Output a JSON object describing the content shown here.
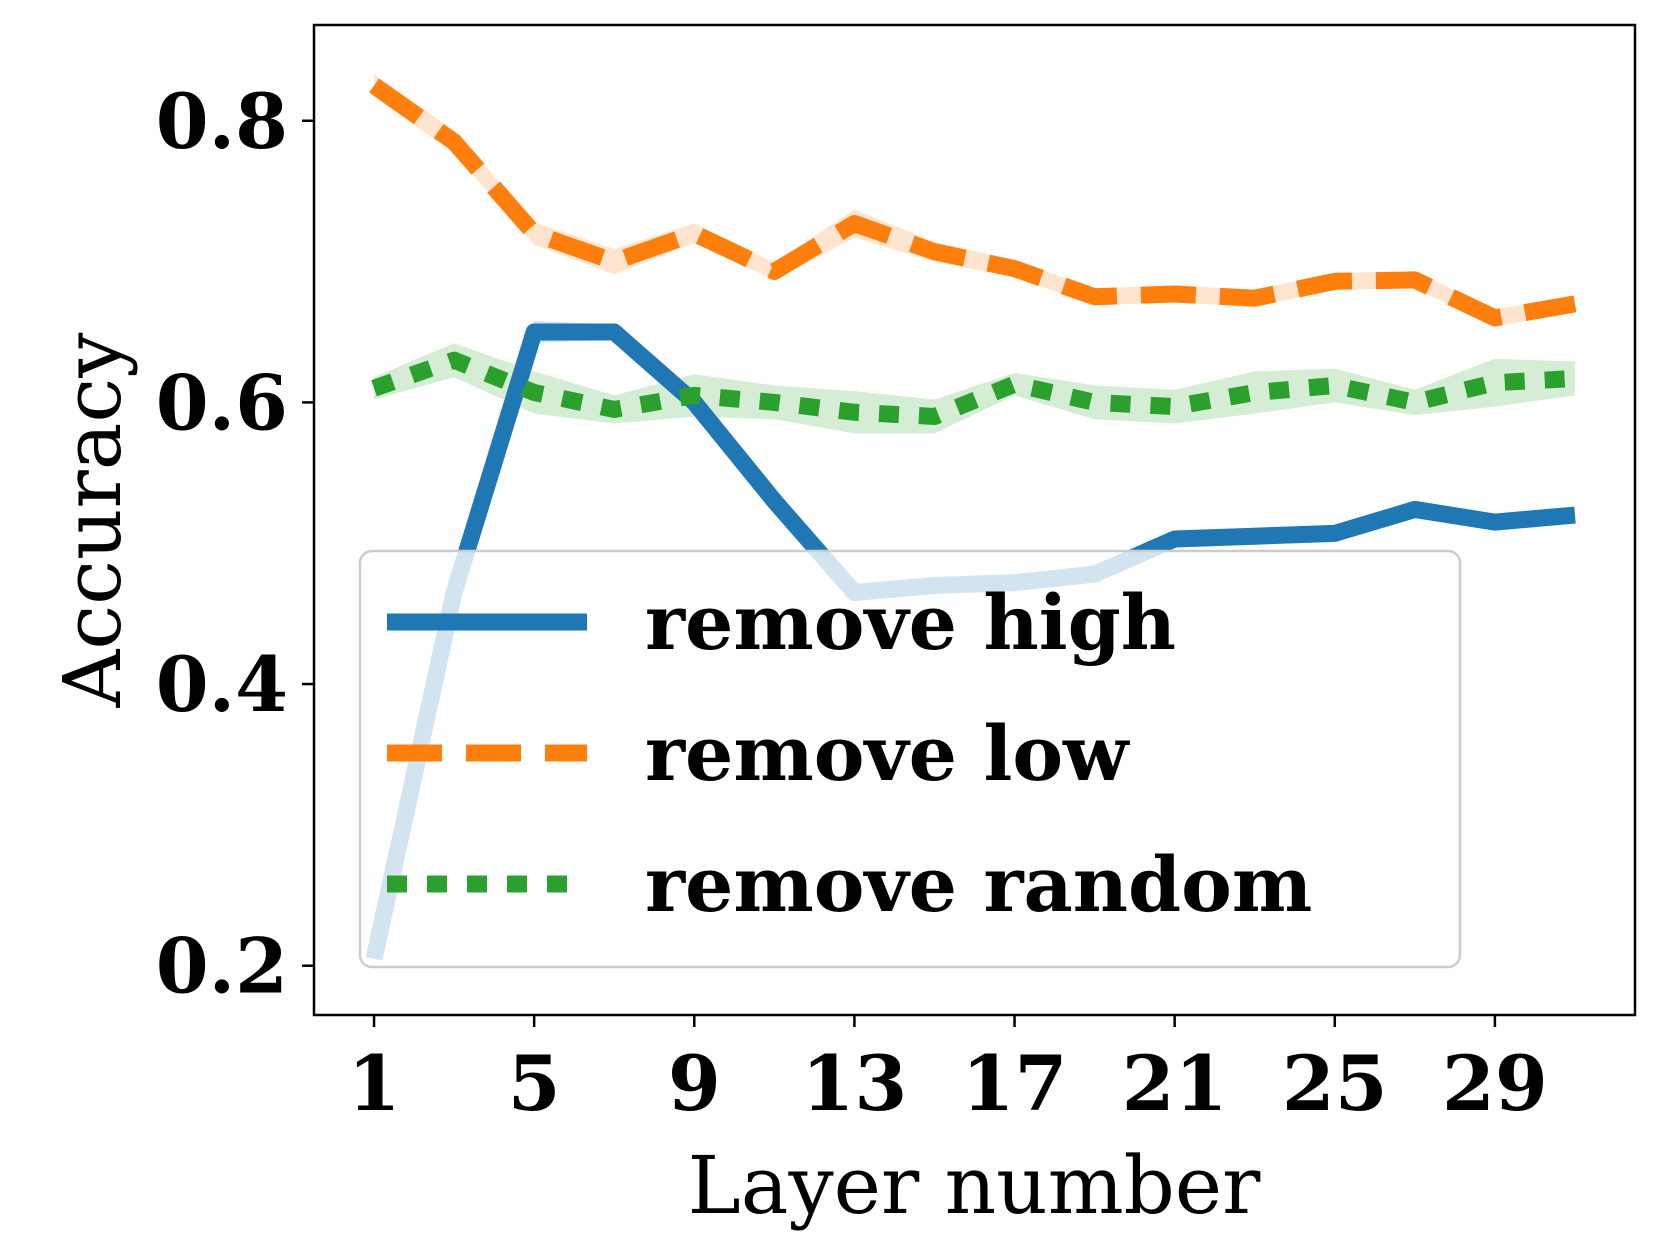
{
  "chart_data": {
    "type": "line",
    "title": "",
    "xlabel": "Layer number",
    "ylabel": "Accuracy",
    "x": [
      1,
      3,
      5,
      7,
      9,
      11,
      13,
      15,
      17,
      19,
      21,
      23,
      25,
      27,
      29,
      31
    ],
    "xticks": [
      1,
      5,
      9,
      13,
      17,
      21,
      25,
      29
    ],
    "xtick_labels": [
      "1",
      "5",
      "9",
      "13",
      "17",
      "21",
      "25",
      "29"
    ],
    "yticks": [
      0.2,
      0.4,
      0.6,
      0.8
    ],
    "ytick_labels": [
      "0.2",
      "0.4",
      "0.6",
      "0.8"
    ],
    "xlim": [
      -0.5,
      32.5
    ],
    "ylim": [
      0.165,
      0.868
    ],
    "grid": false,
    "legend": "lower-left",
    "series": [
      {
        "name": "remove high",
        "color": "#1f77b4",
        "style": "solid",
        "values": [
          0.205,
          0.465,
          0.65,
          0.65,
          0.6,
          0.53,
          0.465,
          0.47,
          0.472,
          0.478,
          0.503,
          0.505,
          0.507,
          0.524,
          0.515,
          0.52
        ],
        "band": [
          0.005,
          0.005,
          0.008,
          0.005,
          0.007,
          0.006,
          0.005,
          0.006,
          0.005,
          0.005,
          0.006,
          0.006,
          0.006,
          0.005,
          0.005,
          0.005
        ]
      },
      {
        "name": "remove low",
        "color": "#ff7f0e",
        "style": "dashed",
        "values": [
          0.825,
          0.785,
          0.72,
          0.7,
          0.72,
          0.693,
          0.727,
          0.707,
          0.695,
          0.675,
          0.677,
          0.674,
          0.686,
          0.687,
          0.66,
          0.67
        ],
        "band": [
          0.008,
          0.008,
          0.008,
          0.009,
          0.007,
          0.006,
          0.01,
          0.007,
          0.006,
          0.006,
          0.006,
          0.006,
          0.006,
          0.006,
          0.006,
          0.006
        ]
      },
      {
        "name": "remove random",
        "color": "#2ca02c",
        "style": "dotted",
        "values": [
          0.61,
          0.63,
          0.607,
          0.595,
          0.605,
          0.6,
          0.593,
          0.59,
          0.613,
          0.6,
          0.597,
          0.607,
          0.612,
          0.6,
          0.614,
          0.617
        ],
        "band": [
          0.008,
          0.012,
          0.015,
          0.01,
          0.015,
          0.012,
          0.015,
          0.012,
          0.008,
          0.012,
          0.012,
          0.015,
          0.012,
          0.009,
          0.017,
          0.012
        ]
      }
    ]
  }
}
